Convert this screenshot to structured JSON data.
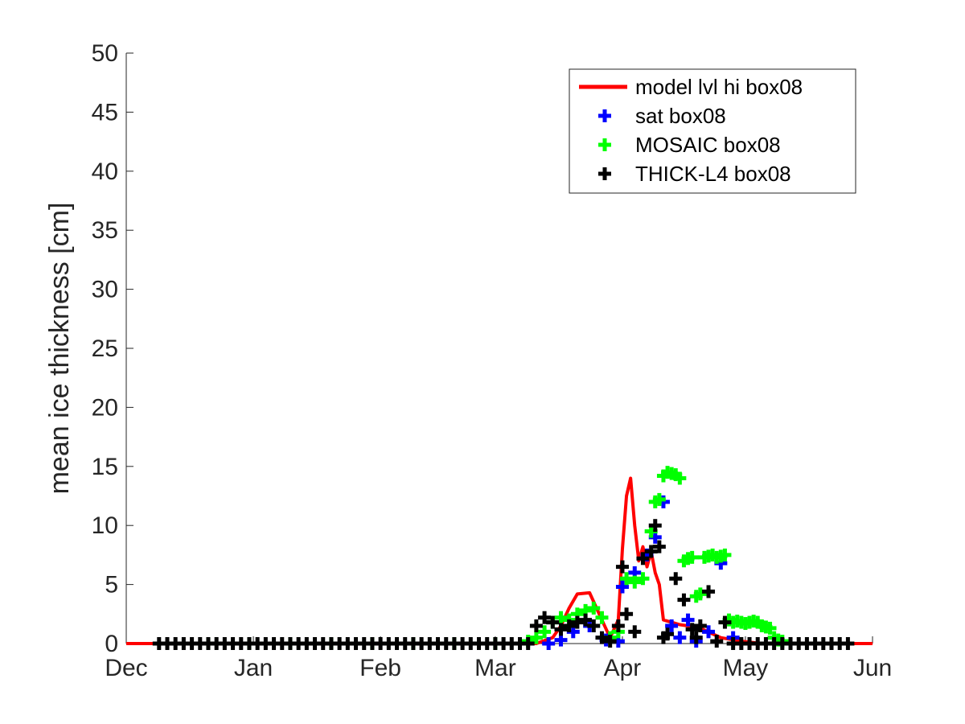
{
  "chart_data": {
    "type": "line",
    "xlabel": "",
    "ylabel": "mean ice thickness [cm]",
    "ylim": [
      0,
      50
    ],
    "yticks": [
      0,
      5,
      10,
      15,
      20,
      25,
      30,
      35,
      40,
      45,
      50
    ],
    "xlim": [
      "Dec",
      "Jun"
    ],
    "xticks": [
      "Dec",
      "Jan",
      "Feb",
      "Mar",
      "Apr",
      "May",
      "Jun"
    ],
    "grid": false,
    "legend_position": "top-right",
    "series": [
      {
        "name": "model lvl hi box08",
        "kind": "line",
        "color": "#ff0000",
        "x_day": [
          0,
          21,
          60,
          90,
          100,
          104,
          106,
          108,
          110,
          113,
          116,
          118,
          120,
          121,
          122,
          123,
          124,
          125,
          126,
          127,
          128,
          129,
          130,
          131,
          133,
          135,
          137,
          140,
          145,
          150,
          155,
          160,
          170,
          182
        ],
        "y": [
          0,
          0,
          0,
          0,
          0,
          0.5,
          1.5,
          3.0,
          4.2,
          4.3,
          2.0,
          0.5,
          2.0,
          8.0,
          12.5,
          14.0,
          10.0,
          7.0,
          8.2,
          6.5,
          7.8,
          6.0,
          5.0,
          2.0,
          1.8,
          1.6,
          1.5,
          1.3,
          0.5,
          0.2,
          0,
          0,
          0,
          0
        ]
      },
      {
        "name": "sat box08",
        "kind": "marker",
        "color": "#0000ff",
        "x_day": [
          103,
          106,
          109,
          113,
          117,
          120,
          121,
          124,
          127,
          129,
          131,
          133,
          135,
          137,
          139,
          142,
          145,
          148
        ],
        "y": [
          0.0,
          0.3,
          1.0,
          1.5,
          0.3,
          0.2,
          4.8,
          6.0,
          7.5,
          9.0,
          12.0,
          1.5,
          0.5,
          2.0,
          0.2,
          1.0,
          6.8,
          0.5
        ]
      },
      {
        "name": "MOSAIC box08",
        "kind": "marker",
        "color": "#00ff00",
        "x_day": [
          10,
          20,
          30,
          40,
          50,
          60,
          70,
          80,
          90,
          98,
          100,
          102,
          104,
          106,
          108,
          110,
          112,
          114,
          116,
          118,
          120,
          122,
          124,
          126,
          128,
          129,
          130,
          131,
          132,
          133,
          134,
          135,
          136,
          137,
          138,
          139,
          140,
          141,
          142,
          143,
          144,
          145,
          146,
          147,
          148,
          149,
          150,
          151,
          152,
          153,
          154,
          155,
          156,
          157,
          158,
          159,
          160
        ],
        "y": [
          0,
          0,
          0,
          0,
          0,
          0,
          0,
          0,
          0,
          0.2,
          0.5,
          1.0,
          1.8,
          2.2,
          2.0,
          2.5,
          2.8,
          3.0,
          2.2,
          0.5,
          1.0,
          5.5,
          5.2,
          5.5,
          9.5,
          12.0,
          12.2,
          14.2,
          14.5,
          14.4,
          14.3,
          14.0,
          7.0,
          7.2,
          7.3,
          4.0,
          4.2,
          7.3,
          7.4,
          7.5,
          7.3,
          7.4,
          7.5,
          2.0,
          1.8,
          1.9,
          1.8,
          1.7,
          1.8,
          1.9,
          1.8,
          1.5,
          1.4,
          1.3,
          0.5,
          0.3,
          0.2
        ]
      },
      {
        "name": "THICK-L4 box08",
        "kind": "marker",
        "color": "#000000",
        "x_day": [
          8,
          10,
          12,
          14,
          16,
          18,
          20,
          22,
          24,
          26,
          28,
          30,
          32,
          34,
          36,
          38,
          40,
          42,
          44,
          46,
          48,
          50,
          52,
          54,
          56,
          58,
          60,
          62,
          64,
          66,
          68,
          70,
          72,
          74,
          76,
          78,
          80,
          82,
          84,
          86,
          88,
          90,
          92,
          94,
          96,
          98,
          100,
          102,
          104,
          106,
          108,
          110,
          112,
          114,
          116,
          118,
          120,
          121,
          122,
          124,
          126,
          128,
          129,
          130,
          131,
          132,
          134,
          136,
          138,
          139,
          140,
          142,
          144,
          146,
          148,
          150,
          152,
          154,
          156,
          158,
          160,
          162,
          164,
          166,
          168,
          170,
          172,
          174,
          176
        ],
        "y": [
          0,
          0,
          0,
          0,
          0,
          0,
          0,
          0,
          0,
          0,
          0,
          0,
          0,
          0,
          0,
          0,
          0,
          0,
          0,
          0,
          0,
          0,
          0,
          0,
          0,
          0,
          0,
          0,
          0,
          0,
          0,
          0,
          0,
          0,
          0,
          0,
          0,
          0,
          0,
          0,
          0,
          0,
          0,
          0,
          0,
          0,
          1.5,
          2.2,
          1.8,
          1.2,
          1.5,
          1.8,
          2.0,
          1.5,
          0.5,
          0.2,
          1.5,
          6.5,
          2.5,
          1.0,
          7.2,
          7.8,
          10.0,
          8.2,
          0.5,
          0.8,
          5.5,
          3.7,
          1.2,
          0.5,
          1.5,
          4.4,
          0.2,
          1.8,
          0,
          0,
          0,
          0,
          0,
          0,
          0,
          0,
          0,
          0,
          0,
          0,
          0,
          0,
          0
        ]
      }
    ]
  }
}
